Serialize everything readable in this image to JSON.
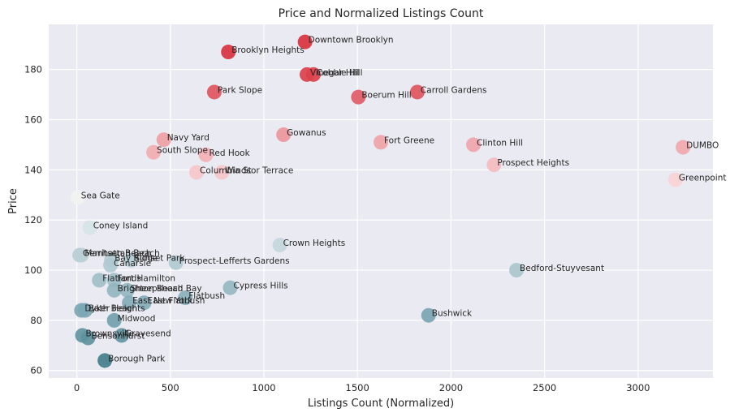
{
  "chart_data": {
    "type": "scatter",
    "title": "Price and Normalized Listings Count",
    "xlabel": "Listings Count (Normalized)",
    "ylabel": "Price",
    "xlim": [
      -150,
      3400
    ],
    "ylim": [
      57,
      198
    ],
    "xticks": [
      "0",
      "500",
      "1000",
      "1500",
      "2000",
      "2500",
      "3000"
    ],
    "yticks": [
      "60",
      "80",
      "100",
      "120",
      "140",
      "160",
      "180"
    ],
    "grid": true,
    "legend": "none",
    "points": [
      {
        "label": "Downtown Brooklyn",
        "x": 1220,
        "y": 191,
        "color": "#d8323e"
      },
      {
        "label": "Brooklyn Heights",
        "x": 810,
        "y": 187,
        "color": "#d8323e"
      },
      {
        "label": "Vinegar Hill",
        "x": 1230,
        "y": 178,
        "color": "#dc404b"
      },
      {
        "label": "Cobble Hill",
        "x": 1265,
        "y": 178,
        "color": "#dc404b"
      },
      {
        "label": "Park Slope",
        "x": 735,
        "y": 171,
        "color": "#e05560"
      },
      {
        "label": "Carroll Gardens",
        "x": 1820,
        "y": 171,
        "color": "#e05560"
      },
      {
        "label": "Boerum Hill",
        "x": 1505,
        "y": 169,
        "color": "#e05c67"
      },
      {
        "label": "Gowanus",
        "x": 1105,
        "y": 154,
        "color": "#ec959c"
      },
      {
        "label": "Navy Yard",
        "x": 465,
        "y": 152,
        "color": "#ef9fa5"
      },
      {
        "label": "Fort Greene",
        "x": 1625,
        "y": 151,
        "color": "#efa2a8"
      },
      {
        "label": "Clinton Hill",
        "x": 2120,
        "y": 150,
        "color": "#efa5ab"
      },
      {
        "label": "DUMBO",
        "x": 3240,
        "y": 149,
        "color": "#f0a8ae"
      },
      {
        "label": "South Slope",
        "x": 410,
        "y": 147,
        "color": "#f1acb1"
      },
      {
        "label": "Red Hook",
        "x": 690,
        "y": 146,
        "color": "#f2b0b5"
      },
      {
        "label": "Prospect Heights",
        "x": 2230,
        "y": 142,
        "color": "#f4bcc0"
      },
      {
        "label": "Columbia St",
        "x": 640,
        "y": 139,
        "color": "#f6c6c9"
      },
      {
        "label": "Windsor Terrace",
        "x": 775,
        "y": 139,
        "color": "#f6c6c9"
      },
      {
        "label": "Greenpoint",
        "x": 3200,
        "y": 136,
        "color": "#f8d2d4"
      },
      {
        "label": "Sea Gate",
        "x": 5,
        "y": 129,
        "color": "#f2f2f2"
      },
      {
        "label": "Coney Island",
        "x": 70,
        "y": 117,
        "color": "#d5e3e7"
      },
      {
        "label": "Crown Heights",
        "x": 1085,
        "y": 110,
        "color": "#c3d6dc"
      },
      {
        "label": "Gerritsen Beach",
        "x": 15,
        "y": 106,
        "color": "#b8cfd6"
      },
      {
        "label": "Manhattan Beach",
        "x": 25,
        "y": 106,
        "color": "#b8cfd6"
      },
      {
        "label": "Bay Ridge",
        "x": 185,
        "y": 104,
        "color": "#b4ccd4"
      },
      {
        "label": "Sunset Park",
        "x": 290,
        "y": 104,
        "color": "#b4ccd4"
      },
      {
        "label": "Canarsie",
        "x": 180,
        "y": 102,
        "color": "#afc9d1"
      },
      {
        "label": "Prospect-Lefferts Gardens",
        "x": 530,
        "y": 103,
        "color": "#b1cad2"
      },
      {
        "label": "Bedford-Stuyvesant",
        "x": 2350,
        "y": 100,
        "color": "#aac5ce"
      },
      {
        "label": "Flatlands",
        "x": 120,
        "y": 96,
        "color": "#a0bec8"
      },
      {
        "label": "Fort Hamilton",
        "x": 200,
        "y": 96,
        "color": "#a0bec8"
      },
      {
        "label": "Brighton Beach",
        "x": 200,
        "y": 92,
        "color": "#93b5c0"
      },
      {
        "label": "Sheepshead Bay",
        "x": 270,
        "y": 92,
        "color": "#93b5c0"
      },
      {
        "label": "Cypress Hills",
        "x": 820,
        "y": 93,
        "color": "#96b7c2"
      },
      {
        "label": "Flatbush",
        "x": 580,
        "y": 89,
        "color": "#8aafbb"
      },
      {
        "label": "East New York",
        "x": 280,
        "y": 87,
        "color": "#84abb8"
      },
      {
        "label": "East Flatbush",
        "x": 360,
        "y": 87,
        "color": "#84abb8"
      },
      {
        "label": "Dyker Heights",
        "x": 25,
        "y": 84,
        "color": "#7ca6b3"
      },
      {
        "label": "Bath Beach",
        "x": 45,
        "y": 84,
        "color": "#7ca6b3"
      },
      {
        "label": "Bushwick",
        "x": 1880,
        "y": 82,
        "color": "#7aa4b2"
      },
      {
        "label": "Midwood",
        "x": 200,
        "y": 80,
        "color": "#72a0ad"
      },
      {
        "label": "Gravesend",
        "x": 240,
        "y": 74,
        "color": "#62949f"
      },
      {
        "label": "Brownsville",
        "x": 30,
        "y": 74,
        "color": "#62949f"
      },
      {
        "label": "Bensonhurst",
        "x": 60,
        "y": 73,
        "color": "#5f929e"
      },
      {
        "label": "Borough Park",
        "x": 150,
        "y": 64,
        "color": "#447d8b"
      }
    ]
  }
}
